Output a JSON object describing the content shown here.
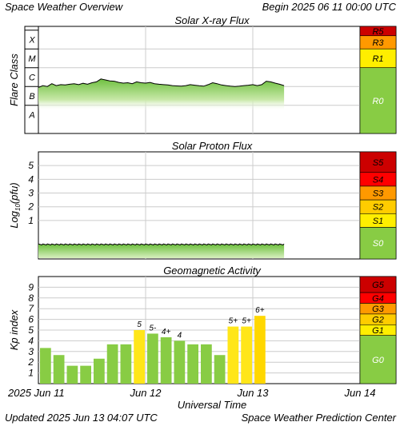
{
  "header": {
    "title": "Space Weather Overview",
    "begin": "Begin 2025 06 11 00:00 UTC"
  },
  "footer": {
    "updated": "Updated 2025 Jun 13 04:07 UTC",
    "credit": "Space Weather Prediction Center"
  },
  "colors": {
    "r5": "#cc0000",
    "r4": "#ff0000",
    "r3": "#ff9900",
    "r2": "#ffcc00",
    "r1": "#ffee00",
    "quiet": "#88cc44",
    "flux_line": "#000000",
    "flux_fill_top": "#7ac943",
    "grid": "#cccccc",
    "bar_green": "#88cc44",
    "bar_yellow": "#ffe619",
    "bar_yellow2": "#ffd700"
  },
  "chart_data": [
    {
      "type": "area",
      "title": "Solar X-ray Flux",
      "ylabel": "Flare Class",
      "y_classes": [
        "A",
        "B",
        "C",
        "M",
        "X"
      ],
      "ylim_log10_wm2": [
        -8.5,
        -2.8
      ],
      "x_ticks": [
        "2025 Jun 11",
        "Jun 12",
        "Jun 13",
        "Jun 14"
      ],
      "xlim_hours": [
        0,
        72
      ],
      "series": [
        {
          "x_hours": [
            0,
            1,
            2,
            3,
            4,
            5,
            6,
            7,
            8,
            9,
            10,
            11,
            12,
            13,
            14,
            15,
            16,
            17,
            18,
            19,
            20,
            21,
            22,
            23,
            24,
            25,
            26,
            27,
            28,
            29,
            30,
            31,
            32,
            33,
            34,
            35,
            36,
            37,
            38,
            39,
            40,
            41,
            42,
            43,
            44,
            45,
            46,
            47,
            48,
            49,
            50,
            51,
            52,
            53,
            54,
            55
          ],
          "y_log10_wm2": [
            -6.05,
            -5.95,
            -6.0,
            -5.85,
            -5.95,
            -5.9,
            -5.92,
            -5.88,
            -5.85,
            -5.9,
            -5.83,
            -5.88,
            -5.8,
            -5.75,
            -5.6,
            -5.65,
            -5.7,
            -5.72,
            -5.78,
            -5.82,
            -5.8,
            -5.85,
            -5.75,
            -5.8,
            -5.82,
            -5.78,
            -5.85,
            -5.88,
            -5.9,
            -5.92,
            -5.95,
            -5.97,
            -5.98,
            -5.95,
            -5.9,
            -5.93,
            -5.96,
            -5.98,
            -5.9,
            -5.8,
            -5.85,
            -5.92,
            -5.95,
            -5.98,
            -6.0,
            -5.98,
            -5.95,
            -5.93,
            -5.9,
            -5.95,
            -5.9,
            -5.72,
            -5.75,
            -5.82,
            -5.88,
            -5.95
          ]
        }
      ],
      "scale_labels": [
        "R5",
        "R3",
        "R1",
        "R0"
      ]
    },
    {
      "type": "area",
      "title": "Solar Proton Flux",
      "ylabel": "Log10(pfu)",
      "y_ticks": [
        1,
        2,
        3,
        4,
        5
      ],
      "ylim": [
        -1.8,
        6.0
      ],
      "x_ticks": [
        "2025 Jun 11",
        "Jun 12",
        "Jun 13",
        "Jun 14"
      ],
      "xlim_hours": [
        0,
        72
      ],
      "series": [
        {
          "x_hours": [
            0,
            55
          ],
          "y": [
            -0.75,
            -0.75
          ]
        }
      ],
      "scale_labels": [
        "S5",
        "S4",
        "S3",
        "S2",
        "S1",
        "S0"
      ]
    },
    {
      "type": "bar",
      "title": "Geomagnetic Activity",
      "ylabel": "Kp index",
      "y_ticks": [
        1,
        2,
        3,
        4,
        5,
        6,
        7,
        8,
        9
      ],
      "ylim": [
        0,
        10
      ],
      "x_ticks": [
        "2025 Jun 11",
        "Jun 12",
        "Jun 13",
        "Jun 14"
      ],
      "xlabel": "Universal Time",
      "xlim_hours": [
        0,
        72
      ],
      "bar_hours": 3,
      "values": [
        3.33,
        2.67,
        1.67,
        1.67,
        2.33,
        3.67,
        3.67,
        5.0,
        4.67,
        4.33,
        4.0,
        3.67,
        3.67,
        2.67,
        5.33,
        5.33,
        6.33
      ],
      "labels": [
        "",
        "",
        "",
        "",
        "",
        "",
        "",
        "5",
        "5-",
        "4+",
        "4",
        "",
        "",
        "",
        "5+",
        "5+",
        "6+"
      ],
      "scale_labels": [
        "G5",
        "G4",
        "G3",
        "G2",
        "G1",
        "G0"
      ]
    }
  ]
}
